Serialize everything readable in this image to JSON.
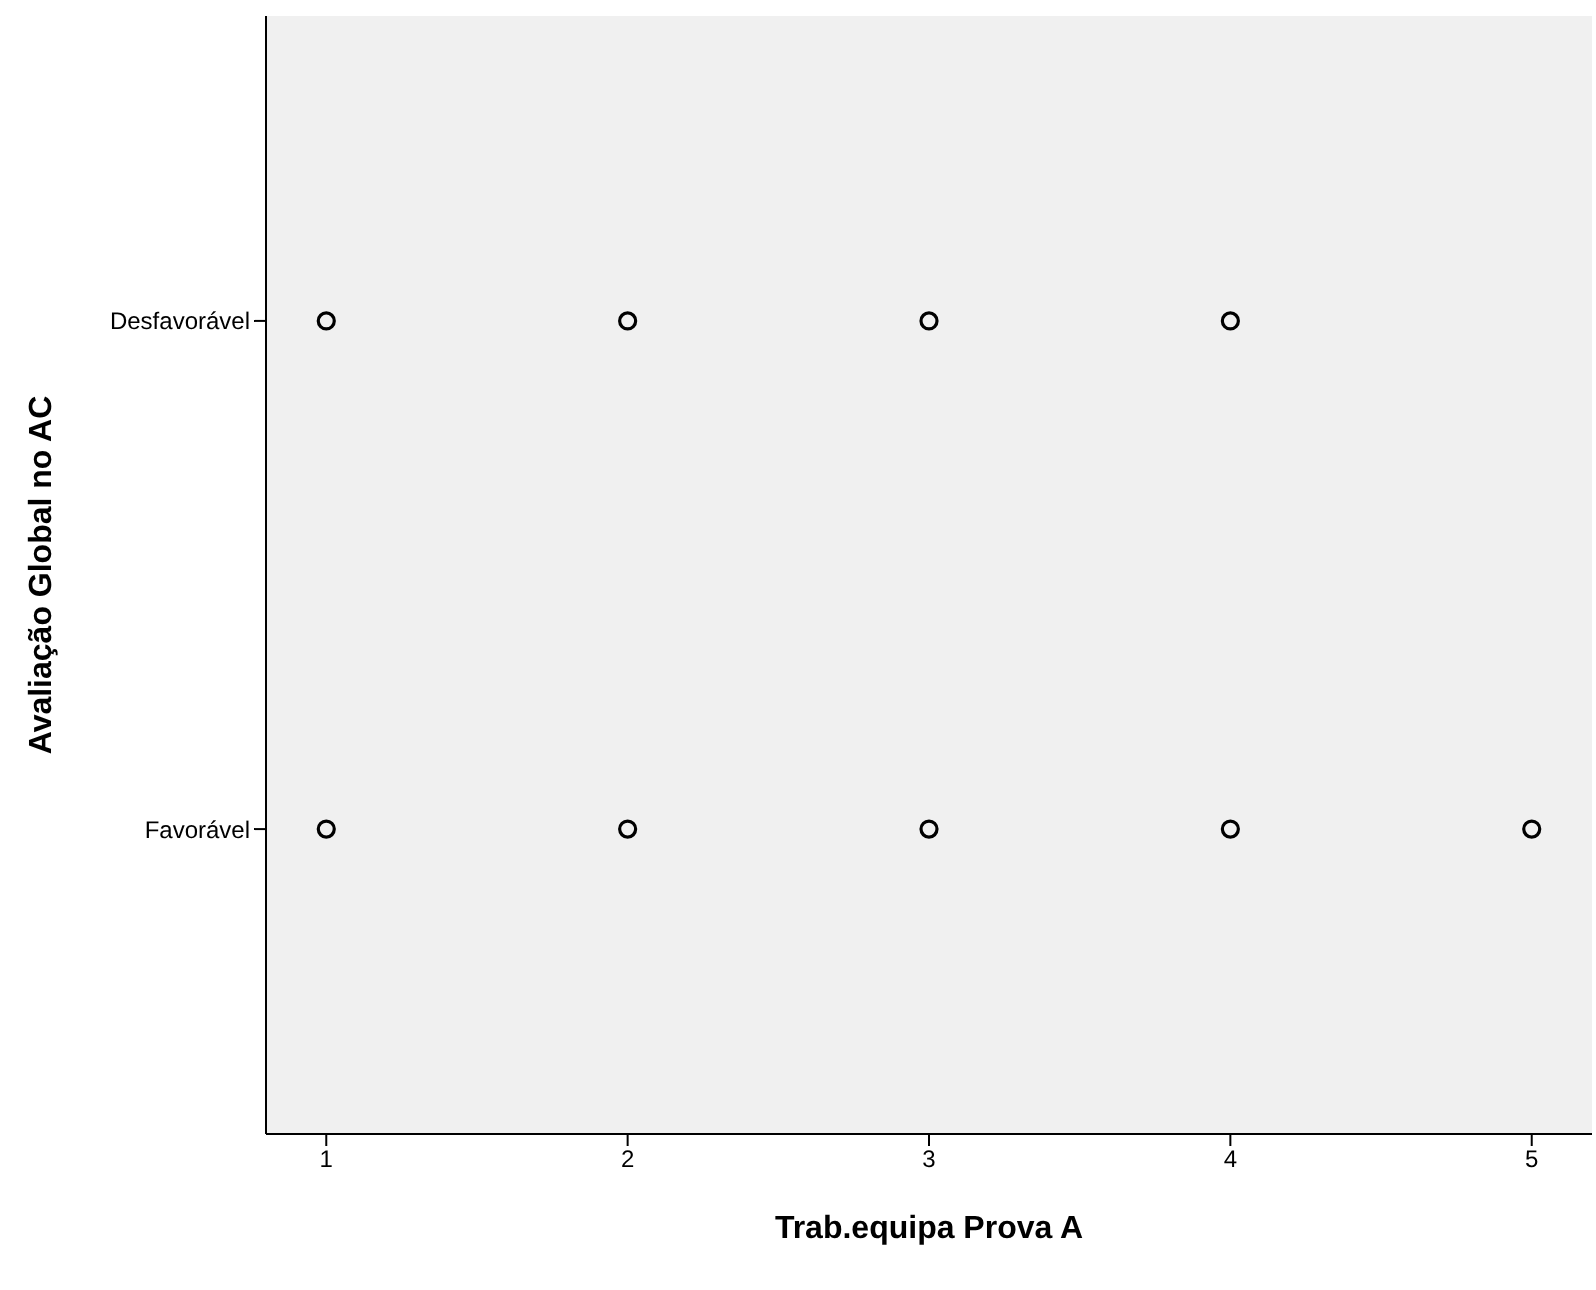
{
  "chart_data": {
    "type": "scatter",
    "orientation": "horizontal",
    "xlabel": "Trab.equipa Prova A",
    "ylabel": "Avaliação Global no AC",
    "categories": [
      "Desfavorável",
      "Favorável"
    ],
    "series": [
      {
        "color": "#000000",
        "values": [
          1,
          1
        ]
      },
      {
        "color": "#000000",
        "values": [
          2,
          2
        ]
      },
      {
        "color": "#000000",
        "values": [
          3,
          3
        ]
      },
      {
        "color": "#000000",
        "values": [
          4,
          4
        ]
      },
      {
        "color": "#000000",
        "values": [
          null,
          5
        ]
      }
    ],
    "marker": "circle",
    "grid": false,
    "xlim": [
      0.8,
      5.2
    ],
    "xticks": [
      1,
      2,
      3,
      4,
      5
    ]
  }
}
